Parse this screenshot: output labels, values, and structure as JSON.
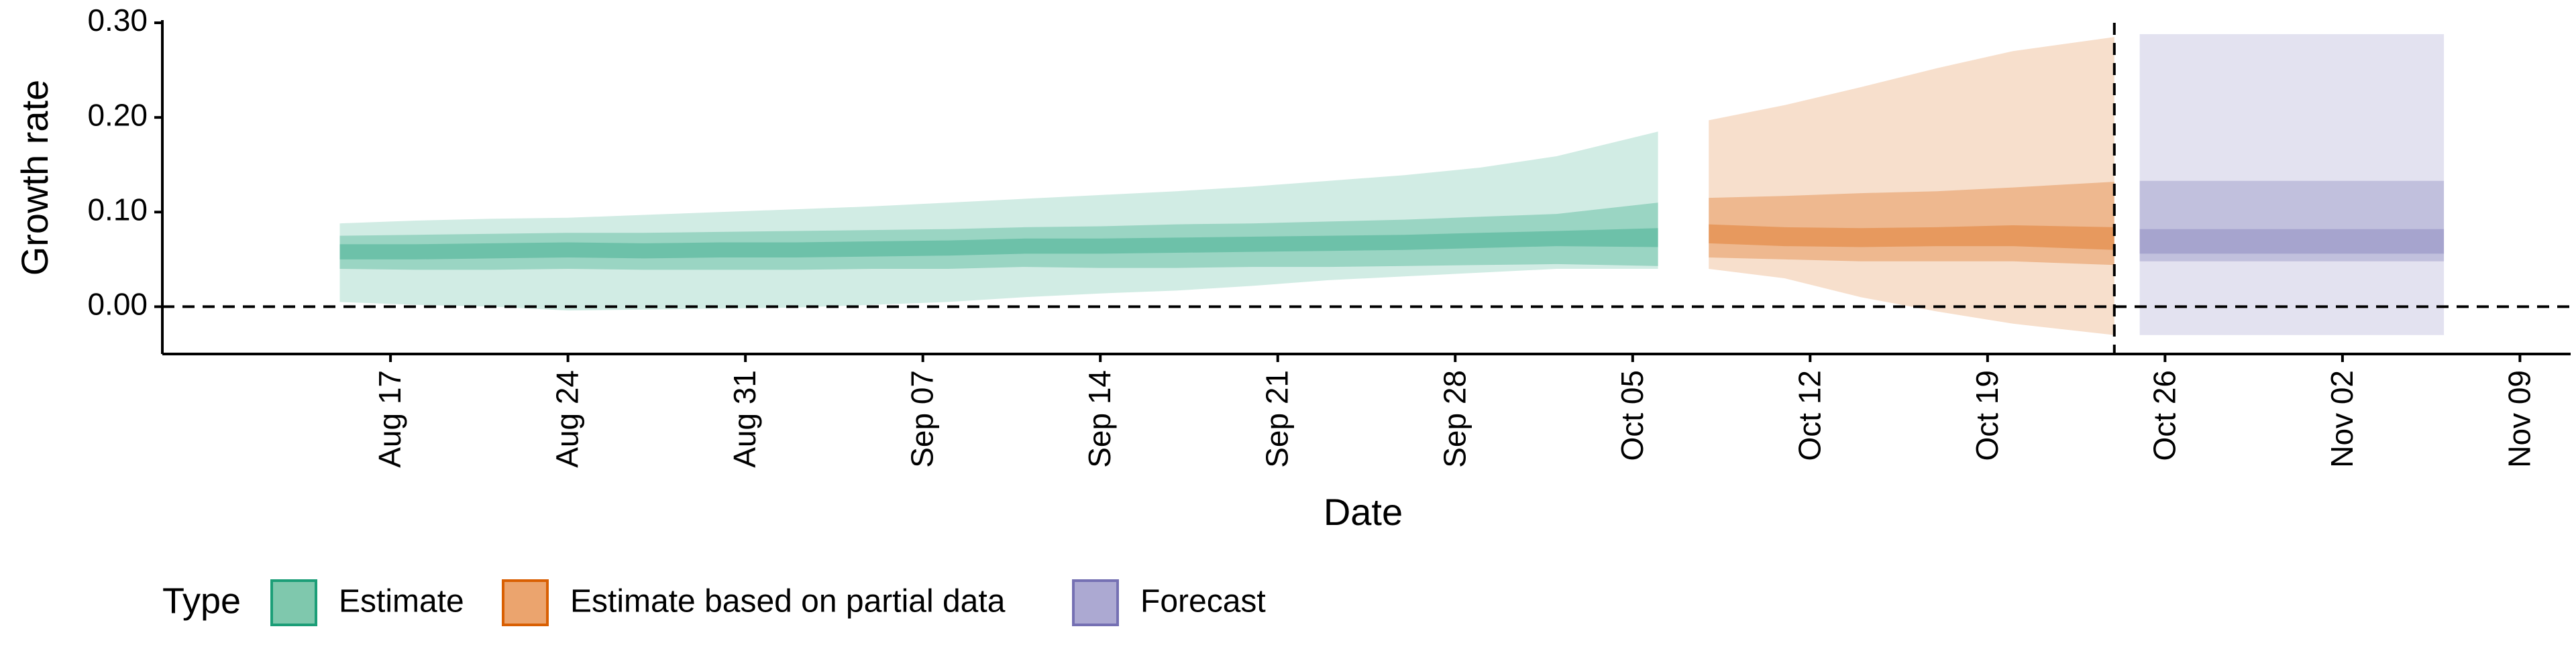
{
  "chart_data": {
    "type": "area",
    "title": "",
    "xlabel": "Date",
    "ylabel": "Growth rate",
    "ylim": [
      -0.05,
      0.3
    ],
    "xlim": [
      "2020-08-08",
      "2020-11-11"
    ],
    "grid": false,
    "y_ticks": [
      0.0,
      0.1,
      0.2,
      0.3
    ],
    "y_tick_labels": [
      "0.00",
      "0.10",
      "0.20",
      "0.30"
    ],
    "x_ticks": [
      "2020-08-17",
      "2020-08-24",
      "2020-08-31",
      "2020-09-07",
      "2020-09-14",
      "2020-09-21",
      "2020-09-28",
      "2020-10-05",
      "2020-10-12",
      "2020-10-19",
      "2020-10-26",
      "2020-11-02",
      "2020-11-09"
    ],
    "x_tick_labels": [
      "Aug 17",
      "Aug 24",
      "Aug 31",
      "Sep 07",
      "Sep 14",
      "Sep 21",
      "Sep 28",
      "Oct 05",
      "Oct 12",
      "Oct 19",
      "Oct 26",
      "Nov 02",
      "Nov 09"
    ],
    "reference_lines": [
      {
        "axis": "y",
        "value": 0.0,
        "style": "dashed"
      },
      {
        "axis": "x",
        "value": "2020-10-24",
        "style": "dashed"
      }
    ],
    "legend": {
      "title": "Type",
      "position": "bottom-left",
      "entries": [
        {
          "label": "Estimate",
          "fill": "#7fc8ad",
          "stroke": "#1b9e77"
        },
        {
          "label": "Estimate based on partial data",
          "fill": "#eba46e",
          "stroke": "#d95f02"
        },
        {
          "label": "Forecast",
          "fill": "#aca9d2",
          "stroke": "#7570b3"
        }
      ]
    },
    "series": [
      {
        "name": "Estimate",
        "color": "#1b9e77",
        "x": [
          "2020-08-15",
          "2020-08-18",
          "2020-08-21",
          "2020-08-24",
          "2020-08-27",
          "2020-08-30",
          "2020-09-02",
          "2020-09-05",
          "2020-09-08",
          "2020-09-11",
          "2020-09-14",
          "2020-09-17",
          "2020-09-20",
          "2020-09-23",
          "2020-09-26",
          "2020-09-29",
          "2020-10-02",
          "2020-10-06"
        ],
        "median": [
          0.058,
          0.058,
          0.059,
          0.06,
          0.059,
          0.06,
          0.06,
          0.061,
          0.062,
          0.064,
          0.064,
          0.065,
          0.066,
          0.067,
          0.068,
          0.07,
          0.072,
          0.073
        ],
        "lower_20": [
          0.05,
          0.05,
          0.051,
          0.052,
          0.051,
          0.052,
          0.052,
          0.053,
          0.054,
          0.056,
          0.056,
          0.057,
          0.058,
          0.059,
          0.06,
          0.062,
          0.064,
          0.063
        ],
        "upper_20": [
          0.066,
          0.066,
          0.067,
          0.068,
          0.067,
          0.068,
          0.068,
          0.069,
          0.07,
          0.072,
          0.072,
          0.073,
          0.074,
          0.075,
          0.076,
          0.078,
          0.08,
          0.083
        ],
        "lower_50": [
          0.04,
          0.039,
          0.039,
          0.04,
          0.039,
          0.039,
          0.039,
          0.04,
          0.04,
          0.042,
          0.041,
          0.041,
          0.042,
          0.042,
          0.043,
          0.044,
          0.045,
          0.043
        ],
        "upper_50": [
          0.075,
          0.076,
          0.077,
          0.078,
          0.078,
          0.079,
          0.08,
          0.081,
          0.082,
          0.084,
          0.085,
          0.087,
          0.088,
          0.09,
          0.092,
          0.095,
          0.098,
          0.11
        ],
        "lower_90": [
          0.005,
          0.002,
          0.0,
          -0.004,
          -0.003,
          -0.002,
          -0.001,
          0.002,
          0.005,
          0.01,
          0.014,
          0.017,
          0.022,
          0.028,
          0.032,
          0.036,
          0.04,
          0.04
        ],
        "upper_90": [
          0.088,
          0.091,
          0.093,
          0.094,
          0.097,
          0.1,
          0.103,
          0.106,
          0.11,
          0.114,
          0.118,
          0.122,
          0.127,
          0.133,
          0.139,
          0.147,
          0.159,
          0.185
        ]
      },
      {
        "name": "Estimate based on partial data",
        "color": "#d95f02",
        "x": [
          "2020-10-08",
          "2020-10-11",
          "2020-10-14",
          "2020-10-17",
          "2020-10-20",
          "2020-10-24"
        ],
        "median": [
          0.077,
          0.074,
          0.073,
          0.074,
          0.075,
          0.072
        ],
        "lower_20": [
          0.067,
          0.064,
          0.063,
          0.064,
          0.064,
          0.06
        ],
        "upper_20": [
          0.087,
          0.084,
          0.083,
          0.084,
          0.086,
          0.084
        ],
        "lower_50": [
          0.052,
          0.05,
          0.048,
          0.048,
          0.048,
          0.044
        ],
        "upper_50": [
          0.115,
          0.117,
          0.12,
          0.122,
          0.126,
          0.132
        ],
        "lower_90": [
          0.04,
          0.03,
          0.01,
          -0.005,
          -0.018,
          -0.03
        ],
        "upper_90": [
          0.197,
          0.213,
          0.232,
          0.252,
          0.27,
          0.285
        ]
      },
      {
        "name": "Forecast",
        "color": "#7570b3",
        "x": [
          "2020-10-25",
          "2020-11-06"
        ],
        "median": [
          0.072,
          0.072
        ],
        "lower_20": [
          0.056,
          0.056
        ],
        "upper_20": [
          0.082,
          0.082
        ],
        "lower_50": [
          0.048,
          0.048
        ],
        "upper_50": [
          0.133,
          0.133
        ],
        "lower_90": [
          -0.03,
          -0.03
        ],
        "upper_90": [
          0.288,
          0.288
        ]
      }
    ]
  }
}
